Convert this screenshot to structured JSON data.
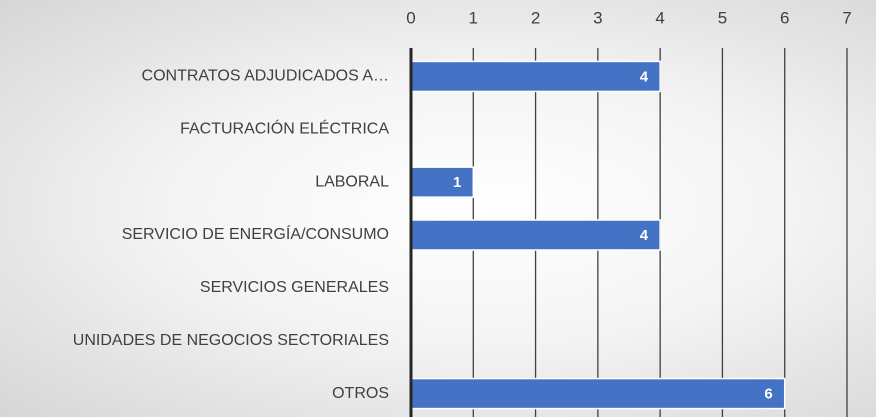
{
  "chart_data": {
    "type": "bar",
    "orientation": "horizontal",
    "categories": [
      "CONTRATOS ADJUDICADOS A…",
      "FACTURACIÓN ELÉCTRICA",
      "LABORAL",
      "SERVICIO DE ENERGÍA/CONSUMO",
      "SERVICIOS GENERALES",
      "UNIDADES DE NEGOCIOS SECTORIALES",
      "OTROS"
    ],
    "values": [
      4,
      null,
      1,
      4,
      null,
      null,
      6
    ],
    "color": "#4472c4",
    "xlim": [
      0,
      7
    ],
    "xticks": [
      0,
      1,
      2,
      3,
      4,
      5,
      6,
      7
    ],
    "grid": true,
    "x_axis_position": "top"
  }
}
